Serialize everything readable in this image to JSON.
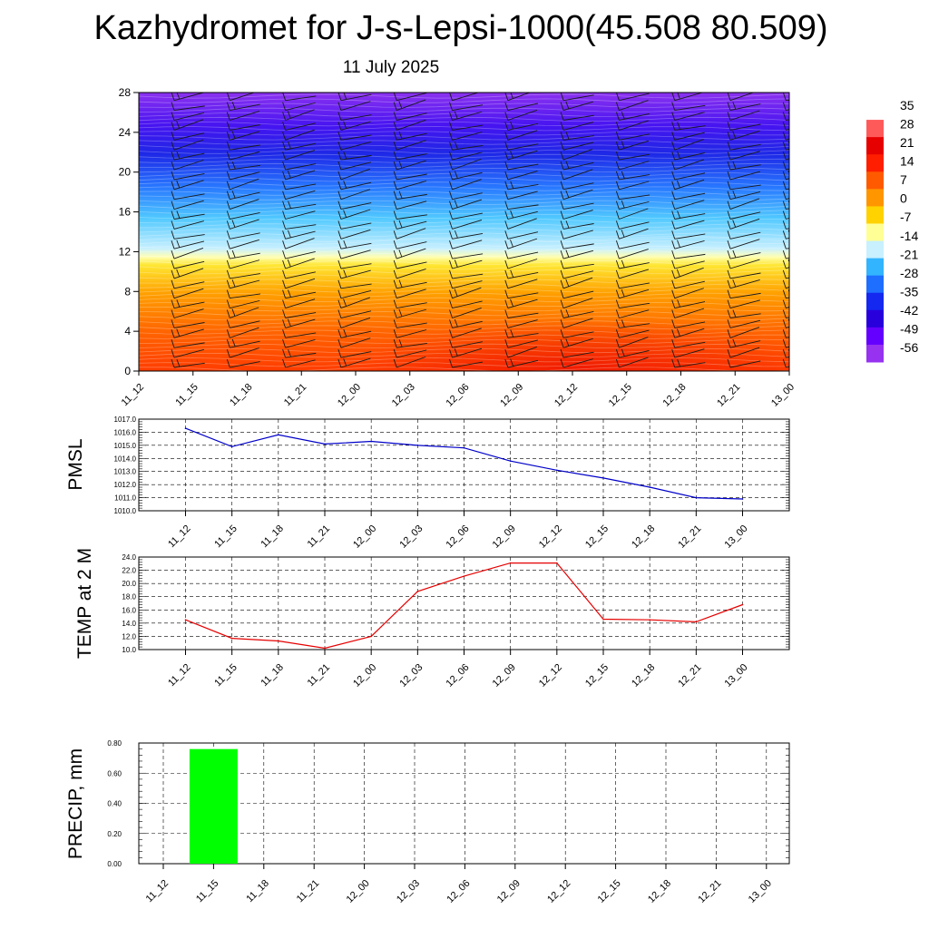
{
  "header": {
    "title": "Kazhydromet for J-s-Lepsi-1000(45.508 80.509)",
    "date": "11 July 2025"
  },
  "chart_data": [
    {
      "type": "heatmap",
      "id": "temperature-profile",
      "x_ticks": [
        "11_12",
        "11_15",
        "11_18",
        "11_21",
        "12_00",
        "12_03",
        "12_06",
        "12_09",
        "12_12",
        "12_15",
        "12_18",
        "12_21",
        "13_00"
      ],
      "y_ticks": [
        "0",
        "4",
        "8",
        "12",
        "16",
        "20",
        "24",
        "28"
      ],
      "ylim": [
        0,
        28
      ],
      "colorbar": {
        "labels": [
          "35",
          "28",
          "21",
          "14",
          "7",
          "0",
          "-7",
          "-14",
          "-21",
          "-28",
          "-35",
          "-42",
          "-49",
          "-56"
        ],
        "colors": [
          "#ffffff",
          "#ff5a5a",
          "#e60000",
          "#ff1e00",
          "#ff5a00",
          "#ff9600",
          "#ffd200",
          "#ffff96",
          "#c8f0ff",
          "#32b4ff",
          "#1e6eff",
          "#1428f0",
          "#2800dc",
          "#6400ff",
          "#9632f0"
        ]
      },
      "levels": [
        {
          "height": 0,
          "temperature": 26
        },
        {
          "height": 4,
          "temperature": 18
        },
        {
          "height": 8,
          "temperature": 6
        },
        {
          "height": 11.5,
          "temperature": -7
        },
        {
          "height": 12.5,
          "temperature": -16
        },
        {
          "height": 16,
          "temperature": -28
        },
        {
          "height": 20,
          "temperature": -40
        },
        {
          "height": 24,
          "temperature": -52
        },
        {
          "height": 28,
          "temperature": -60
        }
      ],
      "wind_barbs": true,
      "grid": false
    },
    {
      "type": "line",
      "id": "pmsl",
      "ylabel": "PMSL",
      "x": [
        "11_12",
        "11_15",
        "11_18",
        "11_21",
        "12_00",
        "12_03",
        "12_06",
        "12_09",
        "12_12",
        "12_15",
        "12_18",
        "12_21",
        "13_00"
      ],
      "values": [
        1016.3,
        1014.9,
        1015.8,
        1015.1,
        1015.3,
        1015.0,
        1014.8,
        1013.8,
        1013.1,
        1012.5,
        1011.8,
        1011.0,
        1010.9
      ],
      "y_ticks": [
        "1017.0",
        "1016.0",
        "1015.0",
        "1014.0",
        "1013.0",
        "1012.0",
        "1011.0",
        "1010.0"
      ],
      "ylim": [
        1010.0,
        1017.0
      ],
      "color": "#0000c8",
      "grid": true
    },
    {
      "type": "line",
      "id": "temp-2m",
      "ylabel": "TEMP at 2 M",
      "x": [
        "11_12",
        "11_15",
        "11_18",
        "11_21",
        "12_00",
        "12_03",
        "12_06",
        "12_09",
        "12_12",
        "12_15",
        "12_18",
        "12_21",
        "13_00"
      ],
      "values": [
        14.5,
        11.7,
        11.3,
        10.2,
        12.0,
        18.8,
        21.1,
        23.1,
        23.1,
        14.6,
        14.5,
        14.2,
        16.8
      ],
      "y_ticks": [
        "24.0",
        "22.0",
        "20.0",
        "18.0",
        "16.0",
        "14.0",
        "12.0",
        "10.0"
      ],
      "ylim": [
        10.0,
        24.0
      ],
      "color": "#e60000",
      "grid": true
    },
    {
      "type": "bar",
      "id": "precip",
      "ylabel": "PRECIP, mm",
      "categories": [
        "11_12",
        "11_15",
        "11_18",
        "11_21",
        "12_00",
        "12_03",
        "12_06",
        "12_09",
        "12_12",
        "12_15",
        "12_18",
        "12_21",
        "13_00"
      ],
      "values": [
        0,
        0.76,
        0,
        0,
        0,
        0,
        0,
        0,
        0,
        0,
        0,
        0,
        0
      ],
      "y_ticks": [
        "0.80",
        "0.60",
        "0.40",
        "0.20",
        "0.00"
      ],
      "ylim": [
        0.0,
        0.8
      ],
      "color": "#00ff00",
      "grid": true
    }
  ]
}
